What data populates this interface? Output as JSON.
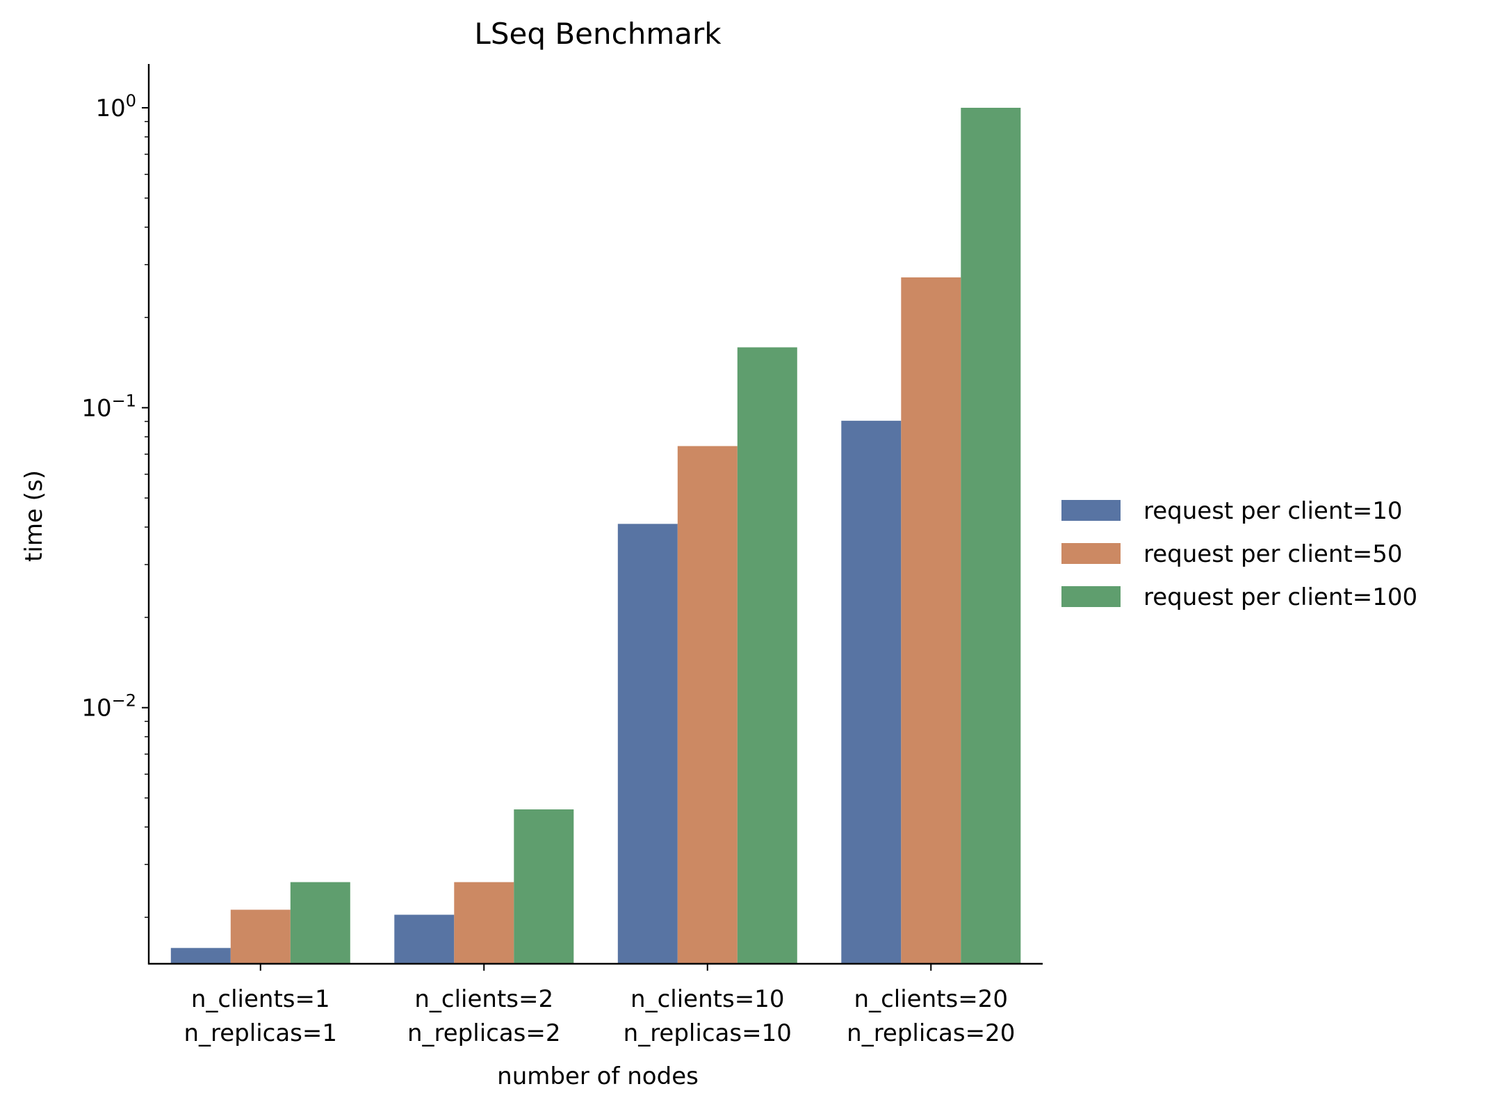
{
  "chart_data": {
    "type": "bar",
    "title": "LSeq Benchmark",
    "xlabel": "number of nodes",
    "ylabel": "time (s)",
    "yscale": "log",
    "ylim": [
      0.0014,
      1.4
    ],
    "y_ticks": [
      {
        "value": 0.01,
        "base": "10",
        "exp": "−2"
      },
      {
        "value": 0.1,
        "base": "10",
        "exp": "−1"
      },
      {
        "value": 1,
        "base": "10",
        "exp": "0"
      }
    ],
    "categories": [
      [
        "n_clients=1",
        "n_replicas=1"
      ],
      [
        "n_clients=2",
        "n_replicas=2"
      ],
      [
        "n_clients=10",
        "n_replicas=10"
      ],
      [
        "n_clients=20",
        "n_replicas=20"
      ]
    ],
    "series": [
      {
        "name": "request per client=10",
        "color": "#5874a3",
        "values": [
          0.00158,
          0.00204,
          0.041,
          0.0905
        ]
      },
      {
        "name": "request per client=50",
        "color": "#cc8963",
        "values": [
          0.00212,
          0.00262,
          0.0745,
          0.272
        ]
      },
      {
        "name": "request per client=100",
        "color": "#5f9e6e",
        "values": [
          0.00262,
          0.00458,
          0.159,
          1.0
        ]
      }
    ],
    "legend_position": "right",
    "grid": false
  }
}
